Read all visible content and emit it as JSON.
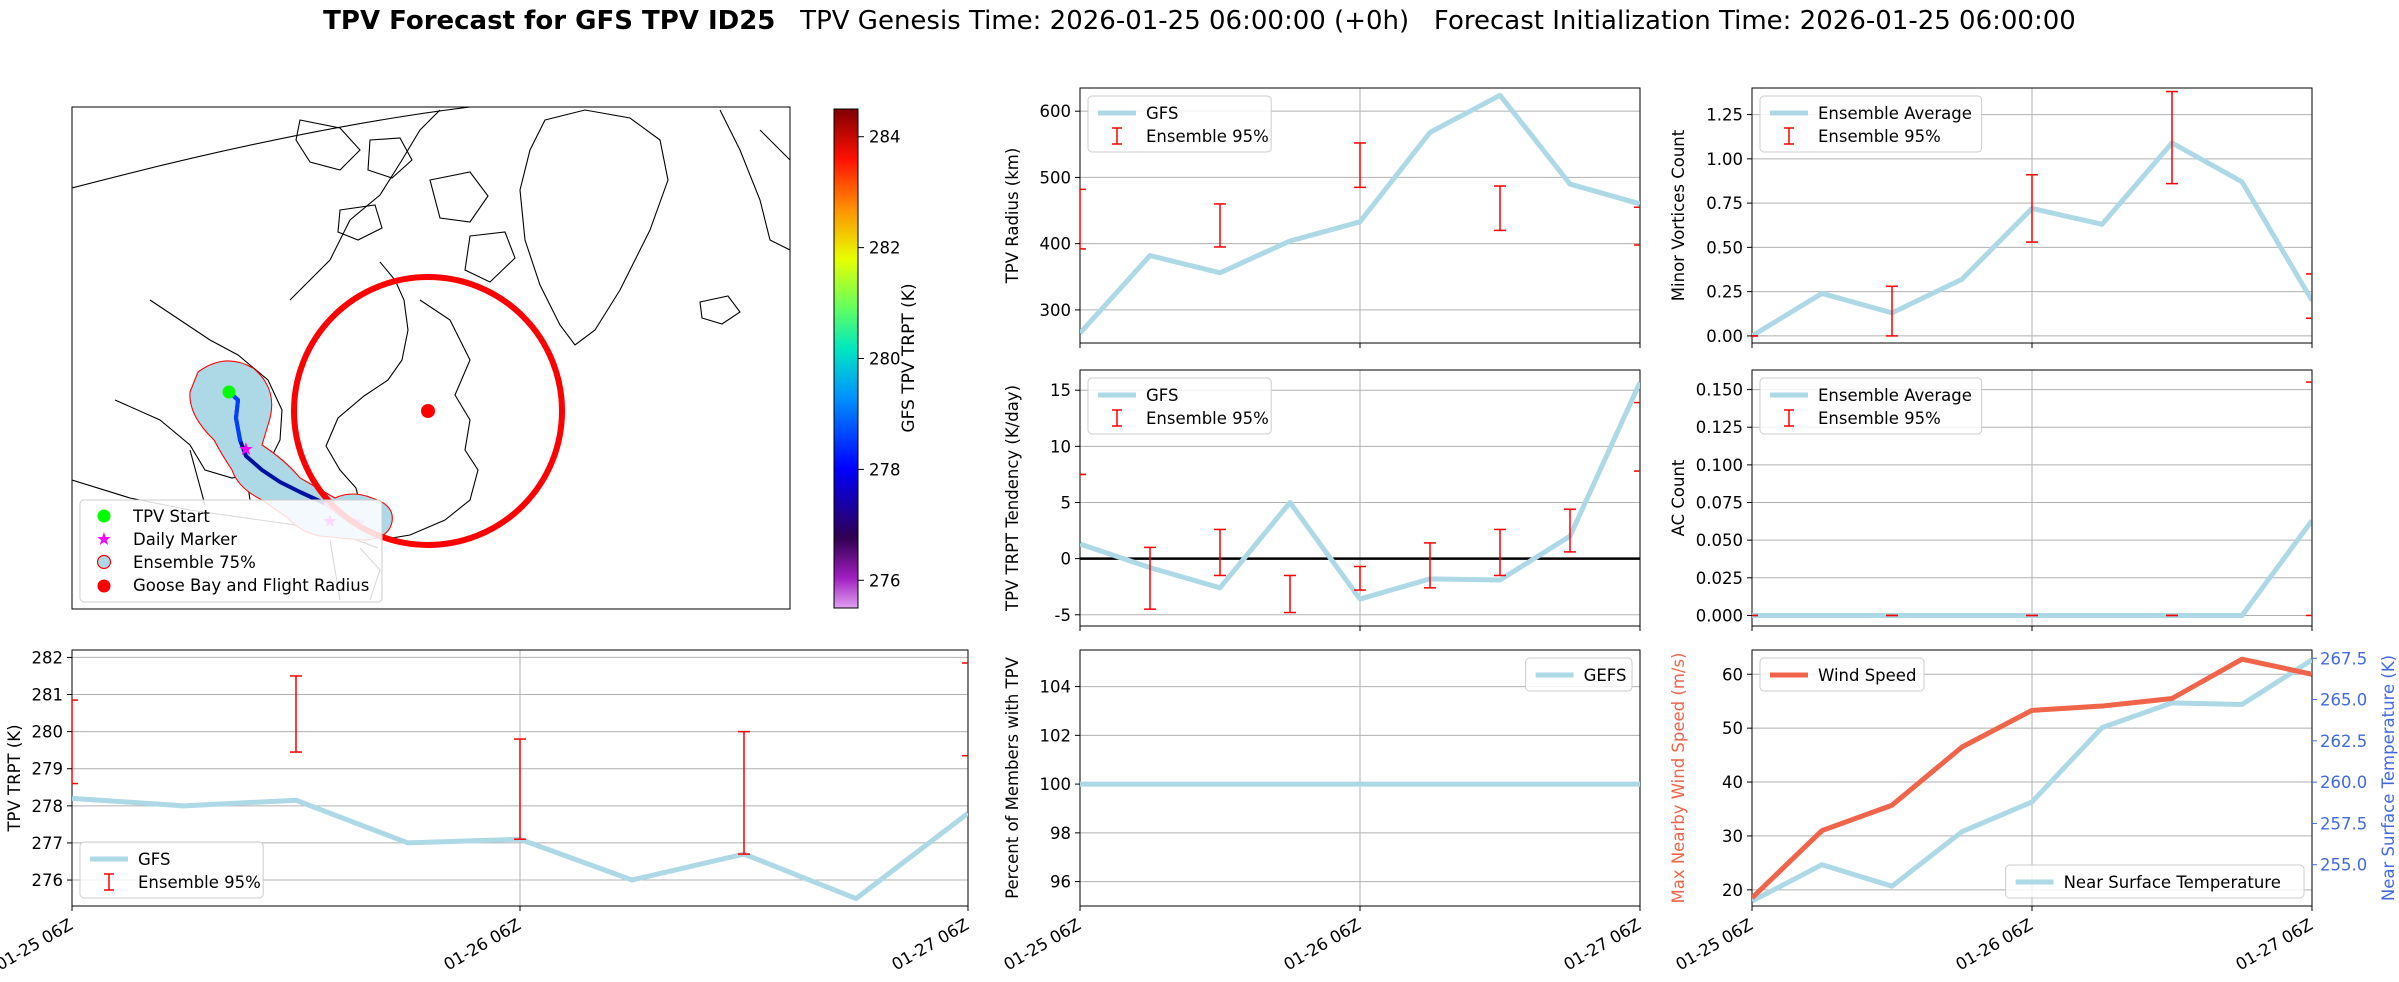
{
  "figure": {
    "title_bold": "TPV Forecast for GFS TPV ID25",
    "title_rest": "   TPV Genesis Time: 2026-01-25 06:00:00 (+0h)   Forecast Initialization Time: 2026-01-25 06:00:00"
  },
  "colors": {
    "line": "#add8e6",
    "error": "#ff0000",
    "wind": "#f0644a",
    "temp_axis": "#4169e1",
    "start": "#00ff00",
    "marker": "#ff00ff",
    "goose": "#ff0000",
    "ensemble_fill": "#add8e6",
    "ensemble_edge": "#ff0000"
  },
  "chart_data": [
    {
      "id": "map",
      "type": "map",
      "legend": [
        {
          "label": "TPV Start",
          "symbol": "circle",
          "color": "#00ff00"
        },
        {
          "label": "Daily Marker",
          "symbol": "star",
          "color": "#ff00ff"
        },
        {
          "label": "Ensemble 75%",
          "symbol": "patch",
          "color": "#add8e6"
        },
        {
          "label": "Goose Bay and Flight Radius",
          "symbol": "circle",
          "color": "#ff0000"
        }
      ],
      "colorbar": {
        "label": "GFS TPV TRPT (K)",
        "ticks": [
          276,
          278,
          280,
          282,
          284
        ],
        "range": [
          275.5,
          284.5
        ]
      }
    },
    {
      "id": "radius",
      "type": "line",
      "ylabel": "TPV Radius (km)",
      "ylim": [
        250,
        635
      ],
      "yticks": [
        300,
        400,
        500,
        600
      ],
      "x": [
        0,
        0.25,
        0.5,
        0.75,
        1,
        1.25,
        1.5,
        1.75,
        2
      ],
      "series": [
        {
          "name": "GFS",
          "values": [
            265,
            382,
            356,
            404,
            433,
            568,
            624,
            490,
            460
          ]
        }
      ],
      "errorbars": {
        "name": "Ensemble 95%",
        "x": [
          0,
          0.5,
          1,
          1.5,
          2
        ],
        "low": [
          392,
          395,
          485,
          420,
          398
        ],
        "high": [
          482,
          460,
          552,
          487,
          455
        ]
      },
      "show_xticklabels": false,
      "legend_pos": "top-left"
    },
    {
      "id": "minor",
      "type": "line",
      "ylabel": "Minor Vortices Count",
      "ylim": [
        -0.04,
        1.4
      ],
      "yticks": [
        0.0,
        0.25,
        0.5,
        0.75,
        1.0,
        1.25
      ],
      "ytick_labels": [
        "0.00",
        "0.25",
        "0.50",
        "0.75",
        "1.00",
        "1.25"
      ],
      "x": [
        0,
        0.25,
        0.5,
        0.75,
        1,
        1.25,
        1.5,
        1.75,
        2
      ],
      "series": [
        {
          "name": "Ensemble Average",
          "values": [
            0.0,
            0.24,
            0.13,
            0.32,
            0.72,
            0.63,
            1.09,
            0.87,
            0.2
          ]
        }
      ],
      "errorbars": {
        "name": "Ensemble 95%",
        "x": [
          0,
          0.5,
          1,
          1.5,
          2
        ],
        "low": [
          0.0,
          0.0,
          0.53,
          0.86,
          0.1
        ],
        "high": [
          0.0,
          0.28,
          0.91,
          1.38,
          0.35
        ]
      },
      "show_xticklabels": false,
      "legend_pos": "top-left"
    },
    {
      "id": "tendency",
      "type": "line",
      "ylabel": "TPV TRPT Tendency (K/day)",
      "ylim": [
        -6,
        16.8
      ],
      "yticks": [
        -5,
        0,
        5,
        10,
        15
      ],
      "zero_line": true,
      "x": [
        0,
        0.25,
        0.5,
        0.75,
        1,
        1.25,
        1.5,
        1.75,
        2
      ],
      "series": [
        {
          "name": "GFS",
          "values": [
            1.3,
            -0.8,
            -2.6,
            5.0,
            -3.6,
            -1.8,
            -1.9,
            2.0,
            15.7
          ]
        }
      ],
      "errorbars": {
        "name": "Ensemble 95%",
        "x": [
          0,
          0.25,
          0.5,
          0.75,
          1,
          1.25,
          1.5,
          1.75,
          2
        ],
        "low": [
          7.5,
          -4.5,
          -1.5,
          -4.8,
          -2.8,
          -2.6,
          -1.5,
          0.6,
          7.8
        ],
        "high": [
          7.5,
          1.0,
          2.6,
          -1.5,
          -0.7,
          1.4,
          2.6,
          4.4,
          13.9
        ]
      },
      "show_xticklabels": false,
      "legend_pos": "top-left"
    },
    {
      "id": "ac",
      "type": "line",
      "ylabel": "AC Count",
      "ylim": [
        -0.007,
        0.163
      ],
      "yticks": [
        0.0,
        0.025,
        0.05,
        0.075,
        0.1,
        0.125,
        0.15
      ],
      "ytick_labels": [
        "0.000",
        "0.025",
        "0.050",
        "0.075",
        "0.100",
        "0.125",
        "0.150"
      ],
      "x": [
        0,
        0.25,
        0.5,
        0.75,
        1,
        1.25,
        1.5,
        1.75,
        2
      ],
      "series": [
        {
          "name": "Ensemble Average",
          "values": [
            0,
            0,
            0,
            0,
            0,
            0,
            0,
            0,
            0.063
          ]
        }
      ],
      "errorbars": {
        "name": "Ensemble 95%",
        "x": [
          0,
          0.5,
          1,
          1.5,
          2
        ],
        "low": [
          0,
          0,
          0,
          0,
          0
        ],
        "high": [
          0,
          0,
          0,
          0,
          0.155
        ]
      },
      "show_xticklabels": false,
      "legend_pos": "top-left"
    },
    {
      "id": "trpt",
      "type": "line",
      "ylabel": "TPV TRPT (K)",
      "ylim": [
        275.3,
        282.2
      ],
      "yticks": [
        276,
        277,
        278,
        279,
        280,
        281,
        282
      ],
      "x": [
        0,
        0.25,
        0.5,
        0.75,
        1,
        1.25,
        1.5,
        1.75,
        2
      ],
      "series": [
        {
          "name": "GFS",
          "values": [
            278.2,
            278.0,
            278.15,
            277.0,
            277.1,
            276.0,
            276.7,
            275.5,
            277.8
          ]
        }
      ],
      "errorbars": {
        "name": "Ensemble 95%",
        "x": [
          0,
          0.5,
          1,
          1.5,
          2
        ],
        "low": [
          278.6,
          279.45,
          277.1,
          276.7,
          279.35
        ],
        "high": [
          280.85,
          281.5,
          279.8,
          280.0,
          281.85
        ]
      },
      "xticklabels": [
        "01-25 06Z",
        "01-26 06Z",
        "01-27 06Z"
      ],
      "legend_pos": "bottom-left"
    },
    {
      "id": "percent",
      "type": "line",
      "ylabel": "Percent of Members with TPV",
      "ylim": [
        95,
        105.5
      ],
      "yticks": [
        96,
        98,
        100,
        102,
        104
      ],
      "x": [
        0,
        0.25,
        0.5,
        0.75,
        1,
        1.25,
        1.5,
        1.75,
        2
      ],
      "series": [
        {
          "name": "GEFS",
          "values": [
            100,
            100,
            100,
            100,
            100,
            100,
            100,
            100,
            100
          ]
        }
      ],
      "xticklabels": [
        "01-25 06Z",
        "01-26 06Z",
        "01-27 06Z"
      ],
      "legend_pos": "top-right"
    },
    {
      "id": "wind",
      "type": "line",
      "ylabel": "Max Nearby Wind Speed (m/s)",
      "ylabel2": "Near Surface Temperature (K)",
      "ylim": [
        17,
        64.5
      ],
      "yticks": [
        20,
        30,
        40,
        50,
        60
      ],
      "ylim2": [
        252.5,
        268.0
      ],
      "yticks2": [
        255.0,
        257.5,
        260.0,
        262.5,
        265.0,
        267.5
      ],
      "ytick2_labels": [
        "255.0",
        "257.5",
        "260.0",
        "262.5",
        "265.0",
        "267.5"
      ],
      "x": [
        0,
        0.25,
        0.5,
        0.75,
        1,
        1.25,
        1.5,
        1.75,
        2
      ],
      "series": [
        {
          "name": "Wind Speed",
          "values": [
            18.5,
            31.0,
            35.7,
            46.5,
            53.3,
            54.1,
            55.5,
            62.8,
            60.0
          ]
        }
      ],
      "series2": [
        {
          "name": "Near Surface Temperature",
          "values": [
            252.8,
            255.0,
            253.7,
            257.0,
            258.8,
            263.3,
            264.8,
            264.7,
            267.4
          ]
        }
      ],
      "xticklabels": [
        "01-25 06Z",
        "01-26 06Z",
        "01-27 06Z"
      ],
      "legend_pos": "top-left",
      "legend2_pos": "bottom-right"
    }
  ]
}
